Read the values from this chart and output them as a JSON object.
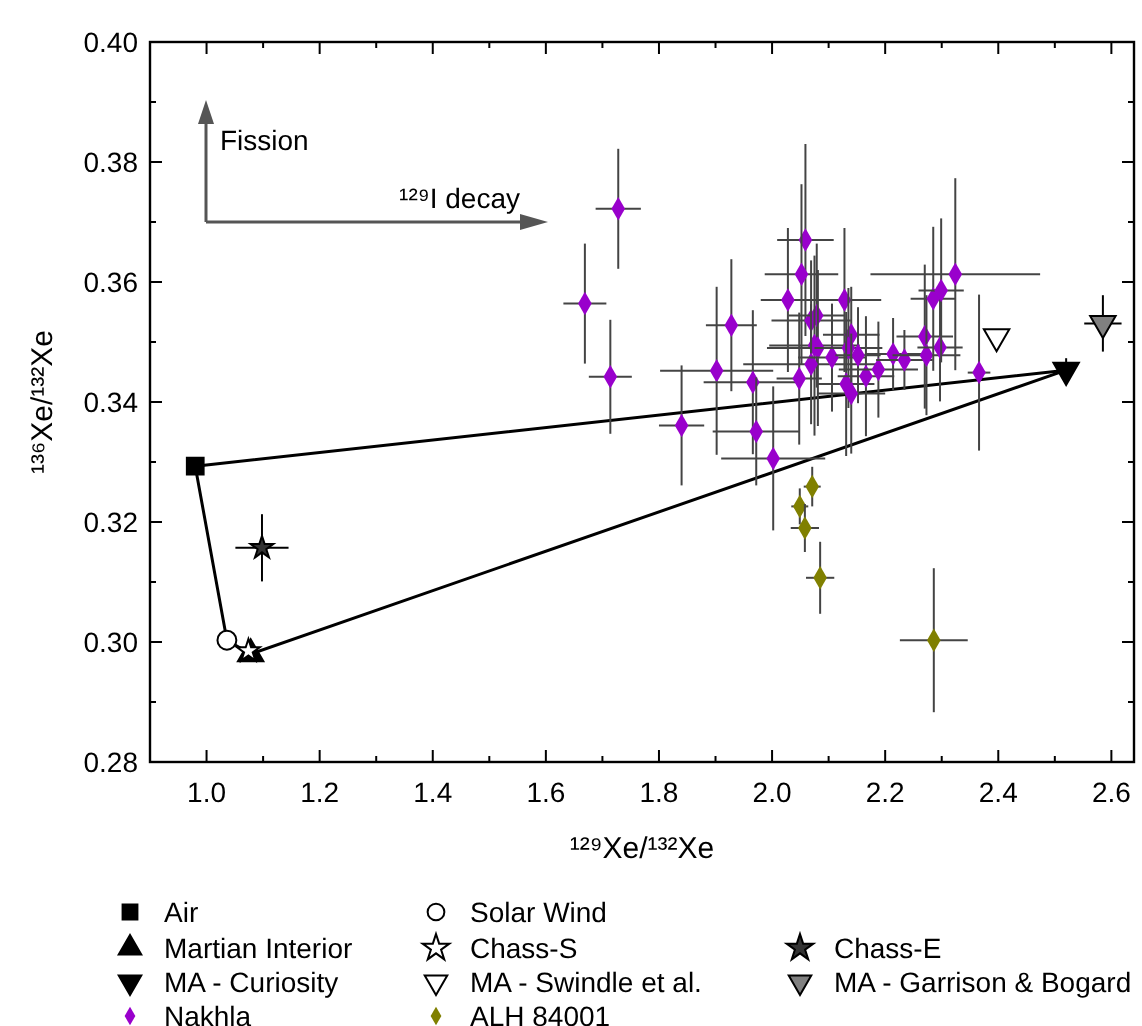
{
  "chart_data": {
    "type": "scatter",
    "xlabel": "¹²⁹Xe/¹³²Xe",
    "ylabel": "¹³⁶Xe/¹³²Xe",
    "xlim": [
      0.9,
      2.64
    ],
    "ylim": [
      0.28,
      0.4
    ],
    "xticks": [
      {
        "value": 1.0,
        "label": "1.0"
      },
      {
        "value": 1.1,
        "label": null
      },
      {
        "value": 1.2,
        "label": "1.2"
      },
      {
        "value": 1.3,
        "label": null
      },
      {
        "value": 1.4,
        "label": "1.4"
      },
      {
        "value": 1.5,
        "label": null
      },
      {
        "value": 1.6,
        "label": "1.6"
      },
      {
        "value": 1.7,
        "label": null
      },
      {
        "value": 1.8,
        "label": "1.8"
      },
      {
        "value": 1.9,
        "label": null
      },
      {
        "value": 2.0,
        "label": "2.0"
      },
      {
        "value": 2.1,
        "label": null
      },
      {
        "value": 2.2,
        "label": "2.2"
      },
      {
        "value": 2.3,
        "label": null
      },
      {
        "value": 2.4,
        "label": "2.4"
      },
      {
        "value": 2.5,
        "label": null
      },
      {
        "value": 2.6,
        "label": "2.6"
      }
    ],
    "yticks": [
      {
        "value": 0.28,
        "label": "0.28"
      },
      {
        "value": 0.29,
        "label": null
      },
      {
        "value": 0.3,
        "label": "0.30"
      },
      {
        "value": 0.31,
        "label": null
      },
      {
        "value": 0.32,
        "label": "0.32"
      },
      {
        "value": 0.33,
        "label": null
      },
      {
        "value": 0.34,
        "label": "0.34"
      },
      {
        "value": 0.35,
        "label": null
      },
      {
        "value": 0.36,
        "label": "0.36"
      },
      {
        "value": 0.37,
        "label": null
      },
      {
        "value": 0.38,
        "label": "0.38"
      },
      {
        "value": 0.39,
        "label": null
      },
      {
        "value": 0.4,
        "label": "0.40"
      }
    ],
    "grid": false,
    "legend": "bottom",
    "annotations": [
      "Fission",
      "¹²⁹I decay"
    ],
    "series": [
      {
        "type": "line",
        "color": "#000000",
        "marker": "none",
        "line_style": "solid",
        "x": [
          0.98,
          1.036,
          1.078,
          2.52
        ],
        "values": [
          0.3293,
          0.3003,
          0.298,
          0.3453
        ]
      },
      {
        "type": "line",
        "color": "#000000",
        "marker": "none",
        "line_style": "solid",
        "x": [
          0.98,
          2.52
        ],
        "values": [
          0.3293,
          0.3453
        ]
      },
      {
        "name": "Air",
        "color": "#000000",
        "marker": "square",
        "x": [
          0.98
        ],
        "values": [
          0.3293
        ]
      },
      {
        "name": "Solar Wind",
        "color": "#ffffff",
        "marker": "circle",
        "x": [
          1.036
        ],
        "values": [
          0.3003
        ]
      },
      {
        "name": "Martian Interior",
        "color": "#000000",
        "marker": "triangle",
        "x": [
          1.078
        ],
        "values": [
          0.298
        ]
      },
      {
        "name": "Chass-S",
        "color": "#ffffff",
        "marker": "star",
        "x": [
          1.074
        ],
        "values": [
          0.2985
        ]
      },
      {
        "name": "Chass-E",
        "color": "#333333",
        "marker": "star",
        "x": [
          1.098
        ],
        "values": [
          0.3157
        ],
        "errors": [
          0.0056
        ],
        "xerrors": [
          0.047
        ]
      },
      {
        "name": "MA - Curiosity",
        "color": "#000000",
        "marker": "triangle-down",
        "x": [
          2.52
        ],
        "values": [
          0.3453
        ],
        "errors": [
          0.002
        ]
      },
      {
        "name": "MA - Swindle et al.",
        "color": "#ffffff",
        "marker": "triangle-down",
        "x": [
          2.397
        ],
        "values": [
          0.3509
        ]
      },
      {
        "name": "MA - Garrison & Bogard",
        "color": "#808080",
        "marker": "triangle-down",
        "x": [
          2.585
        ],
        "values": [
          0.3531
        ],
        "errors": [
          0.0047
        ],
        "xerrors": [
          0.033
        ]
      },
      {
        "name": "Nakhla",
        "color": "#9900cc",
        "marker": "diamond",
        "x": [
          1.728,
          1.669,
          1.714,
          1.928,
          1.902,
          1.84,
          1.966,
          1.972,
          2.002,
          2.059,
          2.052,
          2.028,
          2.128,
          2.069,
          2.079,
          2.075,
          2.081,
          2.069,
          2.048,
          2.106,
          2.14,
          2.135,
          2.152,
          2.131,
          2.14,
          2.166,
          2.188,
          2.214,
          2.234,
          2.27,
          2.273,
          2.297,
          2.285,
          2.299,
          2.324,
          2.366
        ],
        "values": [
          0.3722,
          0.3564,
          0.3442,
          0.3528,
          0.3452,
          0.3361,
          0.3433,
          0.3351,
          0.3306,
          0.367,
          0.3613,
          0.357,
          0.357,
          0.3536,
          0.3544,
          0.3494,
          0.349,
          0.3463,
          0.3439,
          0.3474,
          0.3512,
          0.349,
          0.3478,
          0.343,
          0.3414,
          0.3443,
          0.3454,
          0.348,
          0.347,
          0.3509,
          0.3478,
          0.3491,
          0.3572,
          0.3586,
          0.3613,
          0.3449
        ],
        "errors": [
          0.01,
          0.01,
          0.0095,
          0.011,
          0.014,
          0.01,
          0.012,
          0.009,
          0.012,
          0.016,
          0.015,
          0.012,
          0.012,
          0.01,
          0.012,
          0.015,
          0.013,
          0.01,
          0.011,
          0.009,
          0.008,
          0.01,
          0.008,
          0.012,
          0.01,
          0.01,
          0.008,
          0.006,
          0.005,
          0.012,
          0.01,
          0.009,
          0.012,
          0.012,
          0.016,
          0.013
        ],
        "xerrors": [
          0.04,
          0.038,
          0.038,
          0.045,
          0.1,
          0.04,
          0.087,
          0.077,
          0.092,
          0.05,
          0.065,
          0.048,
          0.065,
          0.07,
          0.05,
          0.08,
          0.09,
          0.12,
          0.04,
          0.06,
          0.05,
          0.06,
          0.04,
          0.05,
          0.06,
          0.05,
          0.07,
          0.05,
          0.05,
          0.05,
          0.06,
          0.04,
          0.04,
          0.04,
          0.15,
          0.02
        ]
      },
      {
        "name": "ALH 84001",
        "color": "#808000",
        "marker": "diamond",
        "x": [
          2.071,
          2.049,
          2.058,
          2.085,
          2.286
        ],
        "values": [
          0.3259,
          0.3226,
          0.319,
          0.3107,
          0.3003
        ],
        "errors": [
          0.0033,
          0.003,
          0.004,
          0.006,
          0.012
        ],
        "xerrors": [
          0.015,
          0.015,
          0.025,
          0.025,
          0.06
        ]
      }
    ]
  }
}
